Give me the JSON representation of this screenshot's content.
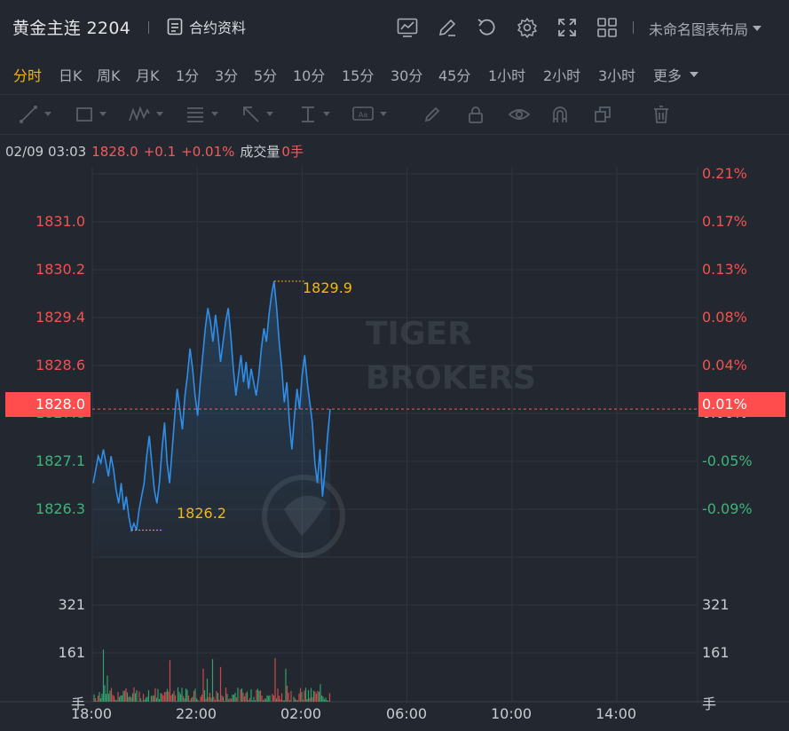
{
  "header": {
    "symbol": "黄金主连 2204",
    "contract_label": "合约资料",
    "layout_label": "未命名图表布局",
    "icons": [
      "chart-settings-icon",
      "edit-icon",
      "undo-icon",
      "gear-icon",
      "fullscreen-icon",
      "grid-layout-icon"
    ]
  },
  "periods": [
    "分时",
    "日K",
    "周K",
    "月K",
    "1分",
    "3分",
    "5分",
    "10分",
    "15分",
    "30分",
    "45分",
    "1小时",
    "2小时",
    "3小时"
  ],
  "active_period": "分时",
  "more_label": "更多",
  "quote": {
    "time": "02/09 03:03",
    "price": "1828.0",
    "change": "+0.1",
    "change_pct": "+0.01%",
    "volume_label": "成交量",
    "volume_value": "0手"
  },
  "price_axis": {
    "left_ticks": [
      "1831.0",
      "1830.2",
      "1829.4",
      "1828.6",
      "1827.8",
      "1827.1",
      "1826.3"
    ],
    "right_ticks": [
      "0.21%",
      "0.17%",
      "0.13%",
      "0.08%",
      "0.04%",
      "0.00%",
      "-0.05%",
      "-0.09%"
    ],
    "current_price": "1828.0",
    "current_pct": "0.01%",
    "high_label": "1829.9",
    "low_label": "1826.2"
  },
  "volume_axis": {
    "ticks": [
      "321",
      "161"
    ],
    "unit": "手"
  },
  "time_axis": [
    "18:00",
    "22:00",
    "02:00",
    "06:00",
    "10:00",
    "14:00"
  ],
  "watermark": {
    "line1": "TIGER",
    "line2": "BROKERS"
  },
  "colors": {
    "background": "#232830",
    "up": "#ef5350",
    "down": "#3fb37a",
    "line": "#2f8fe8",
    "accent": "#f0b90b"
  },
  "chart_data": {
    "type": "line",
    "title": "",
    "x_range": [
      "18:00",
      "17:00"
    ],
    "ylim": [
      1825.8,
      1831.6
    ],
    "reference_price": 1827.9,
    "high": 1829.9,
    "low": 1826.2,
    "last": 1828.0,
    "series": [
      {
        "values": [
          1826.9,
          1827.1,
          1827.3,
          1827.2,
          1827.4,
          1827.2,
          1827.0,
          1827.3,
          1827.1,
          1826.8,
          1826.6,
          1826.9,
          1826.5,
          1826.7,
          1826.4,
          1826.2,
          1826.3,
          1826.2,
          1826.5,
          1826.7,
          1826.9,
          1827.3,
          1827.6,
          1827.2,
          1826.8,
          1826.6,
          1826.9,
          1827.4,
          1827.8,
          1827.2,
          1826.9,
          1827.4,
          1827.9,
          1828.3,
          1828.0,
          1827.7,
          1828.2,
          1828.5,
          1828.9,
          1828.6,
          1828.2,
          1827.9,
          1828.4,
          1828.8,
          1829.2,
          1829.5,
          1829.3,
          1829.0,
          1829.4,
          1829.1,
          1828.7,
          1829.0,
          1829.3,
          1829.5,
          1829.1,
          1828.6,
          1828.2,
          1828.5,
          1828.8,
          1828.4,
          1828.7,
          1828.3,
          1828.6,
          1828.4,
          1828.2,
          1828.5,
          1828.9,
          1829.2,
          1829.0,
          1829.4,
          1829.7,
          1829.9,
          1829.5,
          1829.0,
          1828.6,
          1828.1,
          1828.4,
          1827.8,
          1827.4,
          1827.9,
          1828.3,
          1828.0,
          1828.5,
          1828.8,
          1828.4,
          1828.1,
          1827.8,
          1827.2,
          1826.9,
          1827.4,
          1826.7,
          1827.1,
          1827.6,
          1828.0
        ]
      }
    ],
    "volume_ticks": [
      161,
      321
    ]
  }
}
